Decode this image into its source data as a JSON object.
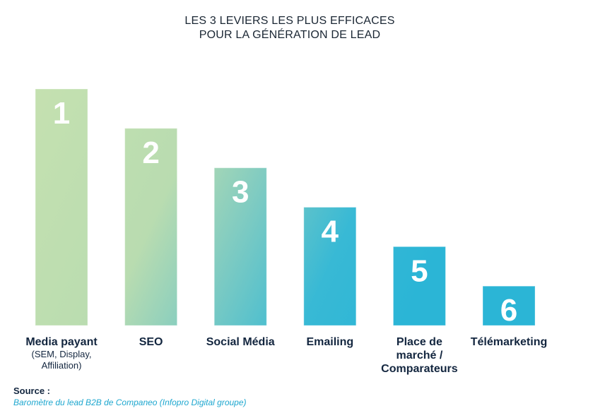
{
  "chart_data": {
    "type": "bar",
    "title": [
      "LES 3 LEVIERS LES PLUS EFFICACES",
      "POUR LA GÉNÉRATION DE LEAD"
    ],
    "categories": [
      {
        "label": [
          "Media payant"
        ],
        "sub": [
          "(SEM, Display,",
          "Affiliation)"
        ]
      },
      {
        "label": [
          "SEO"
        ],
        "sub": []
      },
      {
        "label": [
          "Social Média"
        ],
        "sub": []
      },
      {
        "label": [
          "Emailing"
        ],
        "sub": []
      },
      {
        "label": [
          "Place de",
          "marché /",
          "Comparateurs"
        ],
        "sub": []
      },
      {
        "label": [
          "Télémarketing"
        ],
        "sub": []
      }
    ],
    "ranks": [
      "1",
      "2",
      "3",
      "4",
      "5",
      "6"
    ],
    "values": [
      6,
      5,
      4,
      3,
      2,
      1
    ],
    "ylim": [
      0,
      6
    ],
    "gradient_colors": [
      "#c5e1b0",
      "#b9dcb0",
      "#7ecbc2",
      "#38b9d5",
      "#2bb5d6",
      "#2bb5d6"
    ],
    "xlabel": "",
    "ylabel": "",
    "grid": false
  },
  "source": {
    "label": "Source :",
    "text": "Baromètre du lead B2B de Companeo (Infopro Digital groupe)"
  }
}
